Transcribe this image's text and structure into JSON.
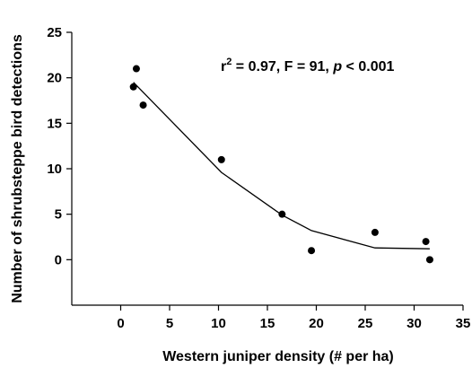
{
  "chart_data": {
    "type": "scatter",
    "xlabel": "Western juniper density (# per ha)",
    "ylabel": "Number of shrubsteppe bird detections",
    "xlim": [
      -5,
      35
    ],
    "ylim": [
      -5,
      25
    ],
    "xticks": [
      0,
      5,
      10,
      15,
      20,
      25,
      30,
      35
    ],
    "yticks": [
      0,
      5,
      10,
      15,
      20,
      25
    ],
    "points": [
      {
        "x": 1.3,
        "y": 19
      },
      {
        "x": 1.6,
        "y": 21
      },
      {
        "x": 2.3,
        "y": 17
      },
      {
        "x": 10.3,
        "y": 11
      },
      {
        "x": 16.5,
        "y": 5
      },
      {
        "x": 19.5,
        "y": 1
      },
      {
        "x": 26,
        "y": 3
      },
      {
        "x": 31.2,
        "y": 2
      },
      {
        "x": 31.6,
        "y": 0
      }
    ],
    "trend_line": [
      {
        "x": 1.3,
        "y": 19.5
      },
      {
        "x": 10.3,
        "y": 9.6
      },
      {
        "x": 16.5,
        "y": 4.9
      },
      {
        "x": 19.5,
        "y": 3.2
      },
      {
        "x": 26,
        "y": 1.3
      },
      {
        "x": 31.6,
        "y": 1.2
      }
    ],
    "annotation": {
      "r_text": "r",
      "r_sup": "2",
      "rest": " = 0.97, F = 91, ",
      "p": "p",
      "tail": " < 0.001"
    },
    "grid": false
  }
}
